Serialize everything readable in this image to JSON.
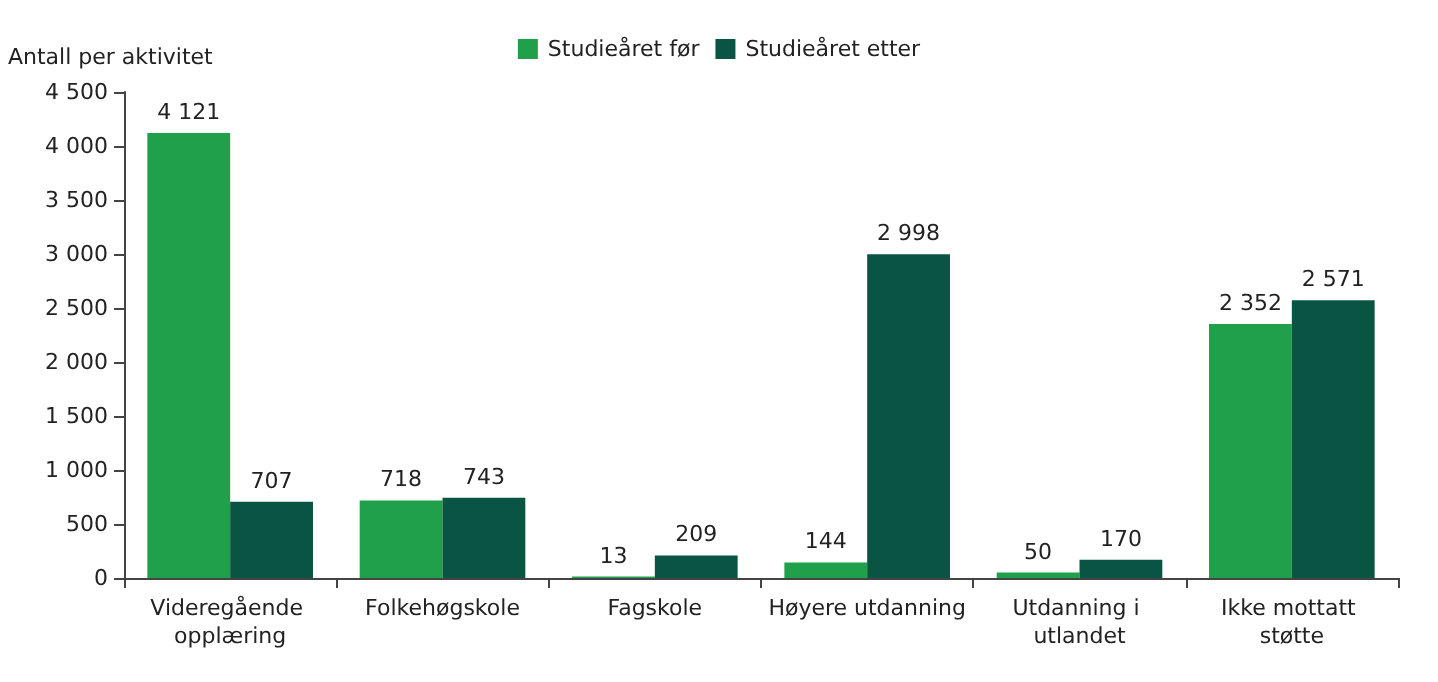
{
  "chart_data": {
    "type": "bar",
    "ylabel": "Antall per aktivitet",
    "categories": [
      "Videregående opplæring",
      "Folkehøgskole",
      "Fagskole",
      "Høyere utdanning",
      "Utdanning i utlandet",
      "Ikke mottatt støtte"
    ],
    "series": [
      {
        "name": "Studieåret før",
        "color": "#21a04b",
        "values": [
          4121,
          718,
          13,
          144,
          50,
          2352
        ],
        "value_labels": [
          "4 121",
          "718",
          "13",
          "144",
          "50",
          "2 352"
        ]
      },
      {
        "name": "Studieåret etter",
        "color": "#0a5443",
        "values": [
          707,
          743,
          209,
          2998,
          170,
          2571
        ],
        "value_labels": [
          "707",
          "743",
          "209",
          "2 998",
          "170",
          "2 571"
        ]
      }
    ],
    "ylim": [
      0,
      4500
    ],
    "yticks": [
      {
        "value": 0,
        "label": "0"
      },
      {
        "value": 500,
        "label": "500"
      },
      {
        "value": 1000,
        "label": "1 000"
      },
      {
        "value": 1500,
        "label": "1 500"
      },
      {
        "value": 2000,
        "label": "2 000"
      },
      {
        "value": 2500,
        "label": "2 500"
      },
      {
        "value": 3000,
        "label": "3 000"
      },
      {
        "value": 3500,
        "label": "3 500"
      },
      {
        "value": 4000,
        "label": "4 000"
      },
      {
        "value": 4500,
        "label": "4 500"
      }
    ],
    "grid": false,
    "legend": "top"
  }
}
